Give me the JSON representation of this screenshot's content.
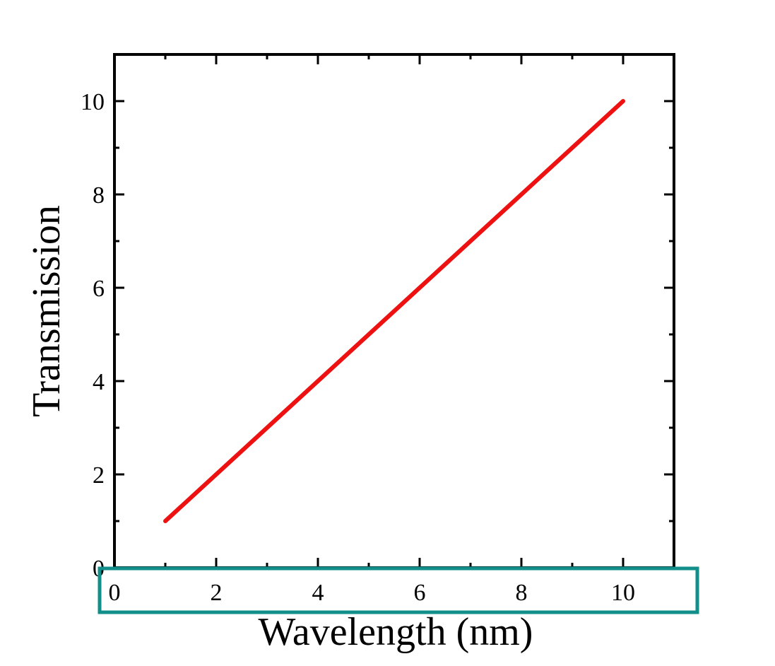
{
  "chart_data": {
    "type": "line",
    "title": "",
    "xlabel": "Wavelength (nm)",
    "ylabel": "Transmission",
    "xlim": [
      0,
      11
    ],
    "ylim": [
      0,
      11
    ],
    "xticks": [
      0,
      2,
      4,
      6,
      8,
      10
    ],
    "yticks": [
      0,
      2,
      4,
      6,
      8,
      10
    ],
    "grid": false,
    "series": [
      {
        "color": "#ee1111",
        "x": [
          1,
          2,
          3,
          4,
          5,
          6,
          7,
          8,
          9,
          10
        ],
        "y": [
          1,
          2,
          3,
          4,
          5,
          6,
          7,
          8,
          9,
          10
        ]
      }
    ],
    "highlight": {
      "target": "x-axis-tick-labels",
      "color": "#128f8a"
    }
  }
}
